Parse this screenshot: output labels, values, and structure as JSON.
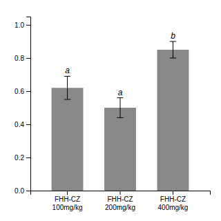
{
  "chart_data": {
    "type": "bar",
    "categories": [
      "FHH-CZ\n100mg/kg",
      "FHH-CZ\n200mg/kg",
      "FHH-CZ\n400mg/kg"
    ],
    "values": [
      0.62,
      0.5,
      0.85
    ],
    "errors": [
      0.07,
      0.06,
      0.05
    ],
    "annotations": [
      "a",
      "a",
      "b"
    ],
    "color": "#888888",
    "ylim": [
      0,
      1.05
    ],
    "yticks": [
      {
        "value": 0,
        "label": "0.0"
      },
      0.2,
      0.4,
      0.6,
      0.8,
      {
        "value": 1,
        "label": "1.0"
      }
    ],
    "grid": false
  }
}
